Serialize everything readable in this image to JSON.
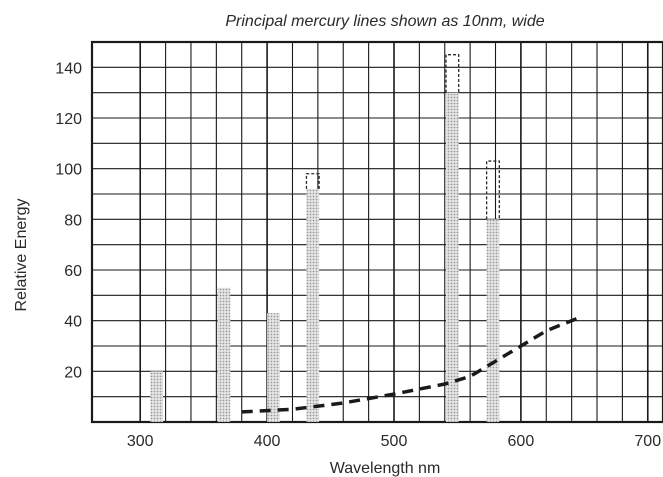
{
  "chart_data": {
    "type": "bar",
    "title": "Principal mercury lines shown as 10nm, wide",
    "xlabel": "Wavelength nm",
    "ylabel": "Relative Energy",
    "xlim": [
      262,
      712
    ],
    "ylim": [
      0,
      150
    ],
    "x_ticks": [
      300,
      400,
      500,
      600,
      700
    ],
    "y_ticks": [
      20,
      40,
      60,
      80,
      100,
      120,
      140
    ],
    "grid": true,
    "bar_width_nm": 10,
    "series": [
      {
        "kind": "bar",
        "x": [
          313,
          366,
          405,
          436,
          546,
          578
        ],
        "values": [
          20,
          53,
          43,
          92,
          130,
          80
        ],
        "dashed_extension_values": [
          null,
          null,
          null,
          98,
          145,
          103
        ],
        "color": "#9a9a9a"
      },
      {
        "kind": "line",
        "style": "dashed",
        "x": [
          380,
          420,
          460,
          500,
          540,
          560,
          580,
          600,
          620,
          645
        ],
        "values": [
          4,
          5,
          7.5,
          11,
          15,
          18,
          24,
          30,
          36,
          41
        ],
        "color": "#1a1a1a"
      }
    ]
  },
  "colors": {
    "grid": "#1a1a1a",
    "bar_fill": "#9a9a9a",
    "text": "#2a2a2a"
  }
}
